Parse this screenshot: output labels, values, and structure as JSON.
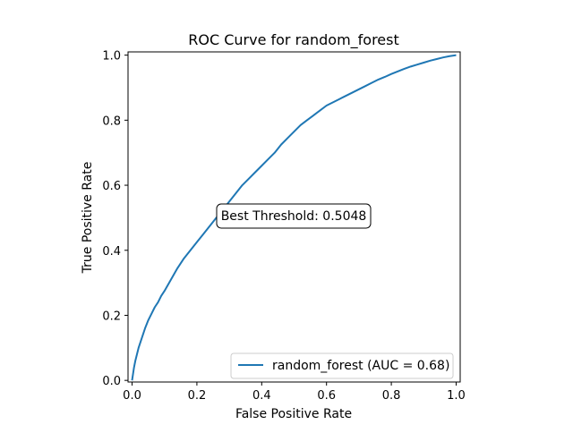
{
  "chart_data": {
    "type": "line",
    "title": "ROC Curve for random_forest",
    "xlabel": "False Positive Rate",
    "ylabel": "True Positive Rate",
    "xlim": [
      -0.0125,
      1.0125
    ],
    "ylim": [
      -0.005,
      1.01
    ],
    "xticks": [
      0.0,
      0.2,
      0.4,
      0.6,
      0.8,
      1.0
    ],
    "xtick_labels": [
      "0.0",
      "0.2",
      "0.4",
      "0.6",
      "0.8",
      "1.0"
    ],
    "yticks": [
      0.0,
      0.2,
      0.4,
      0.6,
      0.8,
      1.0
    ],
    "ytick_labels": [
      "0.0",
      "0.2",
      "0.4",
      "0.6",
      "0.8",
      "1.0"
    ],
    "grid": false,
    "legend_position": "lower-right",
    "series": [
      {
        "name": "random_forest (AUC = 0.68)",
        "color": "#1f77b4",
        "x": [
          0.0,
          0.003,
          0.006,
          0.01,
          0.015,
          0.02,
          0.03,
          0.04,
          0.05,
          0.06,
          0.07,
          0.08,
          0.09,
          0.1,
          0.12,
          0.14,
          0.16,
          0.18,
          0.2,
          0.22,
          0.24,
          0.26,
          0.28,
          0.3,
          0.32,
          0.34,
          0.36,
          0.38,
          0.4,
          0.42,
          0.44,
          0.46,
          0.48,
          0.5,
          0.52,
          0.54,
          0.56,
          0.58,
          0.6,
          0.62,
          0.64,
          0.66,
          0.68,
          0.7,
          0.72,
          0.74,
          0.76,
          0.78,
          0.8,
          0.82,
          0.84,
          0.86,
          0.88,
          0.9,
          0.92,
          0.94,
          0.96,
          0.98,
          1.0
        ],
        "y": [
          0.0,
          0.02,
          0.04,
          0.06,
          0.08,
          0.1,
          0.13,
          0.16,
          0.185,
          0.205,
          0.225,
          0.24,
          0.26,
          0.275,
          0.31,
          0.345,
          0.375,
          0.4,
          0.425,
          0.45,
          0.475,
          0.5,
          0.525,
          0.55,
          0.575,
          0.6,
          0.62,
          0.64,
          0.66,
          0.68,
          0.7,
          0.725,
          0.745,
          0.765,
          0.785,
          0.8,
          0.815,
          0.83,
          0.845,
          0.855,
          0.865,
          0.875,
          0.885,
          0.895,
          0.905,
          0.915,
          0.925,
          0.933,
          0.942,
          0.95,
          0.958,
          0.965,
          0.971,
          0.977,
          0.983,
          0.988,
          0.993,
          0.997,
          1.0
        ]
      }
    ],
    "annotations": [
      {
        "text": "Best Threshold: 0.5048",
        "x": 0.25,
        "y": 0.5
      }
    ]
  }
}
